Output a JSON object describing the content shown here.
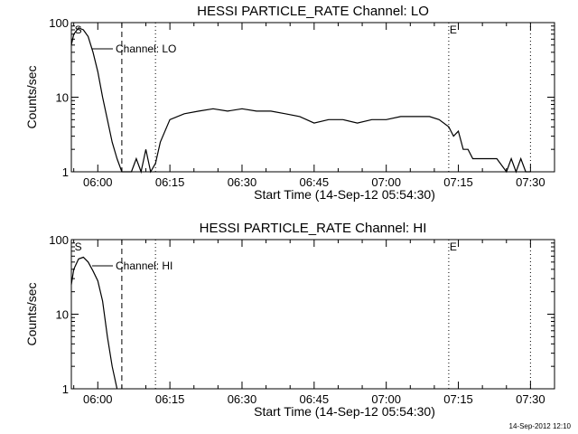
{
  "chart_data": [
    {
      "type": "line",
      "title": "HESSI PARTICLE_RATE Channel: LO",
      "xlabel": "Start Time (14-Sep-12 05:54:30)",
      "ylabel": "Counts/sec",
      "yscale": "log",
      "ylim": [
        1,
        100
      ],
      "xlim": [
        "05:54:30",
        "07:35:00"
      ],
      "x_ticks": [
        "06:00",
        "06:15",
        "06:30",
        "06:45",
        "07:00",
        "07:15",
        "07:30"
      ],
      "y_ticks": [
        "1",
        "10",
        "100"
      ],
      "legend": {
        "entry": "Channel: LO",
        "placement": "top-left"
      },
      "markers": [
        {
          "label": "S",
          "x": "05:55:00"
        },
        {
          "label": "E",
          "x": "07:13:00"
        }
      ],
      "vlines": [
        {
          "x": "06:05:00",
          "style": "dashed"
        },
        {
          "x": "06:12:00",
          "style": "dotted"
        },
        {
          "x": "07:13:00",
          "style": "dotted"
        },
        {
          "x": "07:30:00",
          "style": "dotted"
        }
      ],
      "series": [
        {
          "x": [
            "05:54:30",
            "05:55:00",
            "05:56:00",
            "05:57:00",
            "05:58:00",
            "05:59:00",
            "06:00:00",
            "06:01:00",
            "06:02:00",
            "06:03:00",
            "06:04:00",
            "06:05:00",
            "06:06:00",
            "06:07:00",
            "06:08:00",
            "06:09:00",
            "06:10:00",
            "06:11:00",
            "06:12:00",
            "06:13:00",
            "06:15:00",
            "06:18:00",
            "06:21:00",
            "06:24:00",
            "06:27:00",
            "06:30:00",
            "06:33:00",
            "06:36:00",
            "06:39:00",
            "06:42:00",
            "06:45:00",
            "06:48:00",
            "06:51:00",
            "06:54:00",
            "06:57:00",
            "07:00:00",
            "07:03:00",
            "07:06:00",
            "07:09:00",
            "07:11:00",
            "07:13:00",
            "07:14:00",
            "07:15:00",
            "07:16:00",
            "07:17:00",
            "07:18:00",
            "07:20:00",
            "07:23:00",
            "07:25:00",
            "07:26:00",
            "07:27:00",
            "07:28:00",
            "07:29:00",
            "07:30:00"
          ],
          "y": [
            50,
            70,
            85,
            80,
            65,
            40,
            22,
            10,
            5,
            2.5,
            1.5,
            1,
            1,
            1,
            1.5,
            1,
            2,
            1,
            1.3,
            2.5,
            5,
            6,
            6.5,
            7,
            6.5,
            7,
            6.5,
            6.5,
            6,
            5.5,
            4.5,
            5,
            5,
            4.5,
            5,
            5,
            5.5,
            5.5,
            5.5,
            5,
            4,
            3,
            3.5,
            2,
            2,
            1.5,
            1.5,
            1.5,
            1,
            1.5,
            1,
            1.5,
            1,
            1
          ]
        }
      ]
    },
    {
      "type": "line",
      "title": "HESSI PARTICLE_RATE Channel: HI",
      "xlabel": "Start Time (14-Sep-12 05:54:30)",
      "ylabel": "Counts/sec",
      "yscale": "log",
      "ylim": [
        1,
        100
      ],
      "xlim": [
        "05:54:30",
        "07:35:00"
      ],
      "x_ticks": [
        "06:00",
        "06:15",
        "06:30",
        "06:45",
        "07:00",
        "07:15",
        "07:30"
      ],
      "y_ticks": [
        "1",
        "10",
        "100"
      ],
      "legend": {
        "entry": "Channel: HI",
        "placement": "top-left"
      },
      "markers": [
        {
          "label": "S",
          "x": "05:55:00"
        },
        {
          "label": "E",
          "x": "07:13:00"
        }
      ],
      "vlines": [
        {
          "x": "06:05:00",
          "style": "dashed"
        },
        {
          "x": "06:12:00",
          "style": "dotted"
        },
        {
          "x": "07:13:00",
          "style": "dotted"
        },
        {
          "x": "07:30:00",
          "style": "dotted"
        }
      ],
      "series": [
        {
          "x": [
            "05:54:30",
            "05:55:00",
            "05:56:00",
            "05:57:00",
            "05:58:00",
            "05:59:00",
            "06:00:00",
            "06:01:00",
            "06:02:00",
            "06:03:00",
            "06:04:00"
          ],
          "y": [
            25,
            40,
            55,
            58,
            50,
            38,
            28,
            15,
            5,
            2,
            1
          ]
        }
      ]
    }
  ],
  "timestamp": "14-Sep-2012 12:10"
}
